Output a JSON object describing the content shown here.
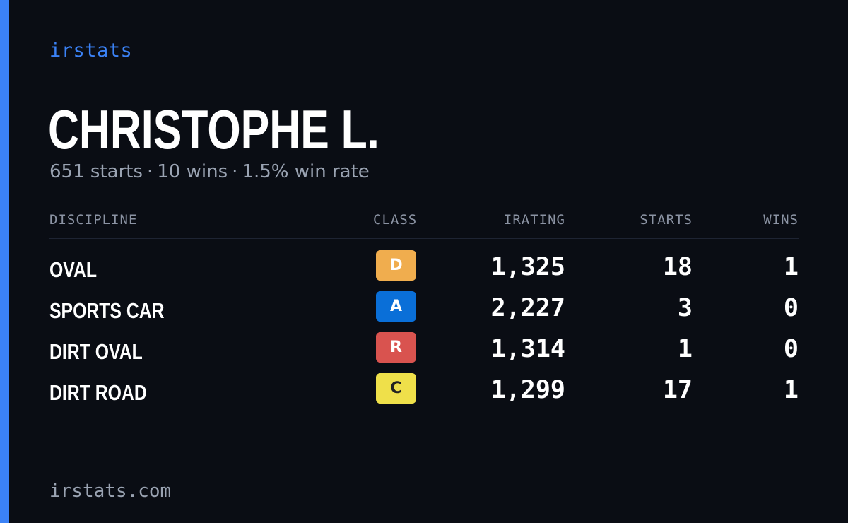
{
  "brand": "irstats",
  "player": {
    "name": "CHRISTOPHE L.",
    "starts_text": "651 starts",
    "wins_text": "10 wins",
    "win_rate_text": "1.5% win rate",
    "separator": "·"
  },
  "table": {
    "headers": {
      "discipline": "DISCIPLINE",
      "class": "CLASS",
      "irating": "IRATING",
      "starts": "STARTS",
      "wins": "WINS"
    },
    "rows": [
      {
        "discipline": "OVAL",
        "class": "D",
        "class_bg": "#f0ad4e",
        "class_fg": "#ffffff",
        "irating": "1,325",
        "starts": "18",
        "wins": "1"
      },
      {
        "discipline": "SPORTS CAR",
        "class": "A",
        "class_bg": "#0a6fd8",
        "class_fg": "#ffffff",
        "irating": "2,227",
        "starts": "3",
        "wins": "0"
      },
      {
        "discipline": "DIRT OVAL",
        "class": "R",
        "class_bg": "#d9534f",
        "class_fg": "#ffffff",
        "irating": "1,314",
        "starts": "1",
        "wins": "0"
      },
      {
        "discipline": "DIRT ROAD",
        "class": "C",
        "class_bg": "#efe04a",
        "class_fg": "#222222",
        "irating": "1,299",
        "starts": "17",
        "wins": "1"
      }
    ]
  },
  "footer": {
    "url": "irstats.com"
  },
  "colors": {
    "background": "#0a0d14",
    "accent": "#3b82f6",
    "muted_text": "#9aa3b2"
  }
}
